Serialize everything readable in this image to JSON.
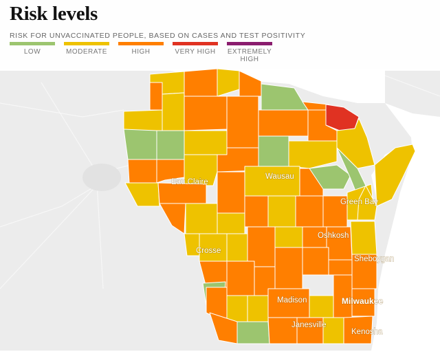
{
  "title": "Risk levels",
  "subtitle": "RISK FOR UNVACCINATED PEOPLE, BASED ON CASES AND TEST POSITIVITY",
  "colors": {
    "low": "#9cc56f",
    "moderate": "#eec200",
    "high": "#ff7f00",
    "very_high": "#e03222",
    "extremely_high": "#8a1d6e",
    "background": "#ececec",
    "water": "#ffffff"
  },
  "legend": [
    {
      "label": "LOW",
      "color": "#9cc56f"
    },
    {
      "label": "MODERATE",
      "color": "#eec200"
    },
    {
      "label": "HIGH",
      "color": "#ff7f00"
    },
    {
      "label": "VERY HIGH",
      "color": "#e03222"
    },
    {
      "label": "EXTREMELY HIGH",
      "color": "#8a1d6e"
    }
  ],
  "cities": [
    "Eau Claire",
    "Wausau",
    "Green Bay",
    "Oshkosh",
    "Crosse",
    "Sheboygan",
    "Madison",
    "Milwaukee",
    "Janesville",
    "Kenosha"
  ]
}
